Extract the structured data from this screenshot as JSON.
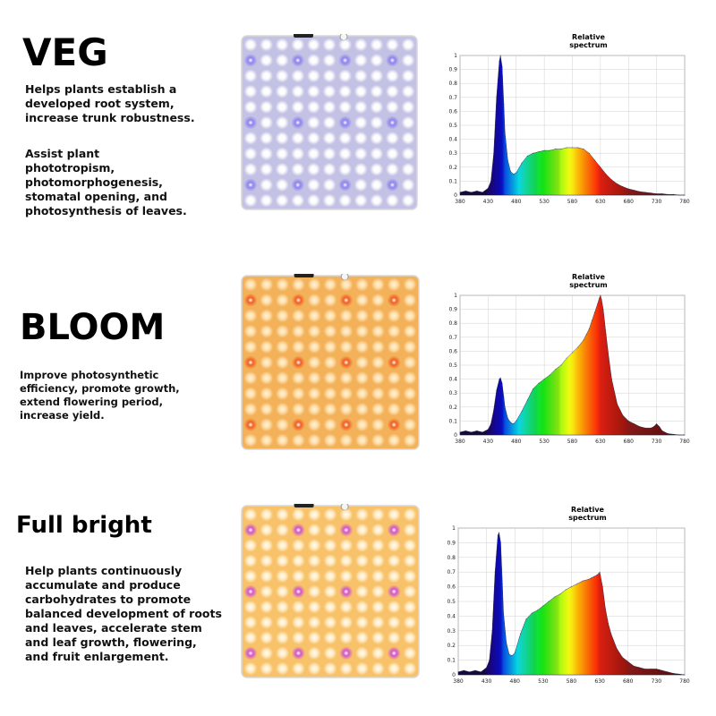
{
  "sections": [
    {
      "title": "VEG",
      "paragraphs": [
        "Helps plants establish a developed root system, increase trunk robustness.",
        "Assist plant phototropism, photomorphogenesis, stomatal opening, and photosynthesis of leaves."
      ]
    },
    {
      "title": "BLOOM",
      "paragraphs": [
        "Improve photosynthetic efficiency, promote growth, extend flowering period, increase yield."
      ]
    },
    {
      "title": "Full bright",
      "paragraphs": [
        "Help plants continuously accumulate and produce carbohydrates to promote balanced development of roots and leaves, accelerate stem and leaf growth, flowering, and fruit enlargement."
      ]
    }
  ],
  "panels": [
    {
      "background": "#c4c2e4",
      "led": "#ffffff",
      "glow": "#ffffff",
      "accent": "#8a7ff0"
    },
    {
      "background": "#f3b25a",
      "led": "#ffe4b5",
      "glow": "#fff1d6",
      "accent": "#f15a1f"
    },
    {
      "background": "#f8c26a",
      "led": "#fff0cf",
      "glow": "#fffaf0",
      "accent": "#d04fd0"
    }
  ],
  "chart_data": [
    {
      "type": "area",
      "title": "Relative spectrum",
      "xlim": [
        380,
        780
      ],
      "ylim": [
        0,
        1
      ],
      "x_ticks": [
        380,
        430,
        480,
        530,
        580,
        630,
        680,
        730,
        780
      ],
      "y_ticks": [
        "0",
        "0.1",
        "0.2",
        "0.3",
        "0.4",
        "0.5",
        "0.6",
        "0.7",
        "0.8",
        "0.9",
        "1"
      ],
      "grid": true,
      "x": [
        380,
        390,
        400,
        410,
        420,
        430,
        435,
        440,
        445,
        450,
        452,
        455,
        458,
        460,
        465,
        470,
        475,
        480,
        490,
        500,
        510,
        520,
        530,
        540,
        550,
        560,
        570,
        580,
        590,
        600,
        610,
        620,
        630,
        640,
        650,
        660,
        670,
        680,
        690,
        700,
        710,
        720,
        730,
        740,
        750,
        760,
        770,
        780
      ],
      "y": [
        0.02,
        0.03,
        0.02,
        0.03,
        0.02,
        0.05,
        0.1,
        0.3,
        0.7,
        0.96,
        1.0,
        0.92,
        0.65,
        0.45,
        0.25,
        0.17,
        0.15,
        0.16,
        0.23,
        0.28,
        0.3,
        0.31,
        0.32,
        0.32,
        0.33,
        0.33,
        0.34,
        0.34,
        0.34,
        0.33,
        0.3,
        0.25,
        0.2,
        0.15,
        0.11,
        0.08,
        0.06,
        0.045,
        0.035,
        0.025,
        0.02,
        0.015,
        0.01,
        0.01,
        0.005,
        0.005,
        0.0,
        0.0
      ]
    },
    {
      "type": "area",
      "title": "Relative spectrum",
      "xlim": [
        380,
        780
      ],
      "ylim": [
        0,
        1
      ],
      "x_ticks": [
        380,
        430,
        480,
        530,
        580,
        630,
        680,
        730,
        780
      ],
      "y_ticks": [
        "0",
        "0.1",
        "0.2",
        "0.3",
        "0.4",
        "0.5",
        "0.6",
        "0.7",
        "0.8",
        "0.9",
        "1"
      ],
      "grid": true,
      "x": [
        380,
        390,
        400,
        410,
        420,
        430,
        435,
        440,
        445,
        450,
        452,
        455,
        458,
        460,
        465,
        470,
        475,
        480,
        490,
        500,
        510,
        520,
        530,
        540,
        550,
        560,
        570,
        580,
        590,
        600,
        605,
        610,
        615,
        620,
        625,
        628,
        630,
        632,
        635,
        640,
        645,
        650,
        660,
        670,
        680,
        690,
        700,
        710,
        720,
        725,
        730,
        735,
        740,
        750,
        760,
        770,
        780
      ],
      "y": [
        0.02,
        0.03,
        0.02,
        0.03,
        0.02,
        0.04,
        0.08,
        0.18,
        0.32,
        0.4,
        0.41,
        0.37,
        0.27,
        0.2,
        0.12,
        0.09,
        0.08,
        0.1,
        0.17,
        0.25,
        0.33,
        0.37,
        0.4,
        0.43,
        0.47,
        0.5,
        0.55,
        0.59,
        0.63,
        0.68,
        0.72,
        0.76,
        0.82,
        0.88,
        0.94,
        0.98,
        1.0,
        0.97,
        0.9,
        0.72,
        0.55,
        0.4,
        0.22,
        0.14,
        0.1,
        0.08,
        0.06,
        0.05,
        0.05,
        0.06,
        0.08,
        0.06,
        0.03,
        0.01,
        0.005,
        0.0,
        0.0
      ]
    },
    {
      "type": "area",
      "title": "Relative spectrum",
      "xlim": [
        380,
        780
      ],
      "ylim": [
        0,
        1
      ],
      "x_ticks": [
        380,
        430,
        480,
        530,
        580,
        630,
        680,
        730,
        780
      ],
      "y_ticks": [
        "0",
        "0.1",
        "0.2",
        "0.3",
        "0.4",
        "0.5",
        "0.6",
        "0.7",
        "0.8",
        "0.9",
        "1"
      ],
      "grid": true,
      "x": [
        380,
        390,
        400,
        410,
        420,
        430,
        435,
        440,
        445,
        450,
        452,
        455,
        458,
        460,
        465,
        470,
        475,
        480,
        490,
        500,
        510,
        520,
        530,
        540,
        550,
        560,
        570,
        580,
        590,
        600,
        610,
        615,
        620,
        625,
        630,
        635,
        640,
        645,
        650,
        660,
        670,
        680,
        690,
        700,
        710,
        720,
        725,
        730,
        735,
        740,
        750,
        760,
        770,
        780
      ],
      "y": [
        0.02,
        0.03,
        0.02,
        0.03,
        0.02,
        0.05,
        0.1,
        0.3,
        0.7,
        0.95,
        0.97,
        0.9,
        0.62,
        0.42,
        0.22,
        0.14,
        0.13,
        0.15,
        0.28,
        0.38,
        0.42,
        0.44,
        0.47,
        0.5,
        0.53,
        0.55,
        0.58,
        0.6,
        0.62,
        0.64,
        0.65,
        0.66,
        0.67,
        0.68,
        0.7,
        0.6,
        0.45,
        0.35,
        0.28,
        0.18,
        0.12,
        0.09,
        0.06,
        0.05,
        0.04,
        0.04,
        0.04,
        0.04,
        0.035,
        0.03,
        0.02,
        0.01,
        0.005,
        0.0
      ]
    }
  ]
}
